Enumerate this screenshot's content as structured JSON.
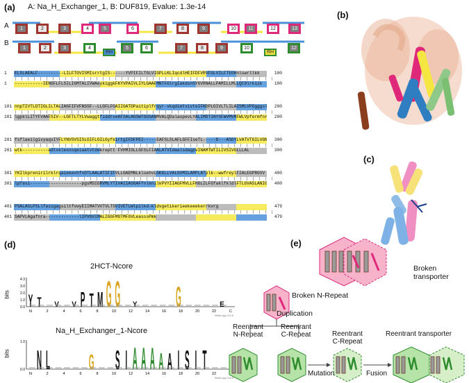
{
  "panel_labels": {
    "a": "(a)",
    "b": "(b)",
    "c": "(c)",
    "d": "(d)",
    "e": "(e)"
  },
  "panel_a": {
    "header": "A: Na_H_Exchanger_1, B: DUF819, Evalue: 1.3e-14",
    "track_a_label": "A",
    "track_b_label": "B",
    "track_a_boxes": [
      {
        "n": "1",
        "fill": "#808080",
        "border": "#a0342e"
      },
      {
        "n": "2",
        "fill": "#e8e8e8",
        "border": "#a0342e"
      },
      {
        "n": "3",
        "fill": "#808080",
        "border": "#a0342e"
      },
      {
        "n": "4",
        "fill": "#ffffff",
        "border": "#e0287a"
      },
      {
        "n": "5",
        "fill": "#808080",
        "border": "#e0287a"
      },
      {
        "n": "6",
        "fill": "#ffffff",
        "border": "#e0287a"
      },
      {
        "n": "7",
        "fill": "#808080",
        "border": "#a0342e"
      },
      {
        "n": "8",
        "fill": "#e8e8e8",
        "border": "#a0342e"
      },
      {
        "n": "9",
        "fill": "#808080",
        "border": "#a0342e"
      },
      {
        "n": "10",
        "fill": "#ffffff",
        "border": "#e0287a"
      },
      {
        "n": "11",
        "fill": "#808080",
        "border": "#e0287a"
      },
      {
        "n": "12",
        "fill": "#ffffff",
        "border": "#e0287a"
      },
      {
        "n": "13",
        "fill": "#808080",
        "border": "#e0287a"
      }
    ],
    "track_b_boxes": [
      {
        "n": "1",
        "fill": "#808080",
        "border": "#a0342e"
      },
      {
        "n": "2",
        "fill": "#e8e8e8",
        "border": "#a0342e"
      },
      {
        "n": "3",
        "fill": "#808080",
        "border": "#a0342e"
      },
      {
        "n": "4",
        "fill": "#ffffff",
        "border": "#2e8b2e"
      },
      {
        "n": "RH",
        "fill": "#4a90d9",
        "border": "#2e8b2e"
      },
      {
        "n": "5",
        "fill": "#808080",
        "border": "#2e8b2e"
      },
      {
        "n": "6",
        "fill": "#ffffff",
        "border": "#2e8b2e"
      },
      {
        "n": "7",
        "fill": "#808080",
        "border": "#a0342e"
      },
      {
        "n": "8",
        "fill": "#e8e8e8",
        "border": "#a0342e"
      },
      {
        "n": "9",
        "fill": "#808080",
        "border": "#a0342e"
      },
      {
        "n": "10",
        "fill": "#ffffff",
        "border": "#2e8b2e"
      },
      {
        "n": "RH",
        "fill": "#f5e642",
        "border": "#2e8b2e"
      },
      {
        "n": "12",
        "fill": "#808080",
        "border": "#2e8b2e"
      }
    ],
    "alignment_blocks": [
      {
        "start_a": "1",
        "end_a": "100",
        "start_b": "1",
        "end_b": "100",
        "seq_a": "ELSLAEALF----------LILFTGVISMIsrrtgIS------YVPIFILTGLVIGPLLKLIqcdlHEIFDFVRVFGLVILFTEGHnlswrllkk",
        "seq_b": "-----------IENGFLFLSILIGMTALIVWAeykiggkFKYVPAIVLIYLGAAFMNTFGlrgIakdsnSYGVRNALLPAMILLMLLQCDlrkiik"
      },
      {
        "start_a": "101",
        "end_a": "200",
        "start_b": "101",
        "end_b": "200",
        "seq_a": "nnpTIVTLDTIGLILTALIAGFIFVFNSSF--LLGFLFGAIIGATDPaitiplfrqyr-vkqdietvivteIFNDPLGIVLTLILAISMLVPGgggsl",
        "seq_b": "lgpklLITYFVAAFSIV--LGFTLTYLVwaggtfiddtveAFSALAGSWTGGSANMVALQDalaupevLYALIMDTINYSFWVMVMFWLVpfermfnr"
      },
      {
        "start_a": "201",
        "end_a": "300",
        "start_b": "201",
        "end_b": "300",
        "seq_a": "fsflaeilgivyaqvIYFLYNVSVSISLGIFLGILGyfkirtgIFDFPEI-----EAFSLSLAFLGFFIseTL-----D---ASGYLVATVTGILVGN",
        "seq_b": "wtk----------adtsklesnsqeiaatvtdekreptt FVHMIGLLGFSLFIAALATVIdaalsdagpvINAMTWTILIVSIVGLLLAL"
      },
      {
        "start_a": "301",
        "end_a": "400",
        "start_b": "301",
        "end_b": "400",
        "seq_a": "YKIlkprenirilrklrqaiekevhfnDTLAALATIFIFVLLGAEMNLklsehvLGKGLLVALGVMILARPLATplk--wwfreylFIALEGPRGVV",
        "seq_b": "lpfasi--------------------pgsMDIGRVMLYTIVAIIASGAFfnlknilkPVYIIAGFMVLLFHGLILFGfaklfkldlFTLGVASLANIGGMV"
      },
      {
        "start_a": "401",
        "end_a": "479",
        "start_b": "401",
        "end_b": "479",
        "seq_a": "PSALASLPSLlfasigagsiltfvwyEIIMATVVTVLTSVIVETLWlpilkd-kldvgetikerieekeeekerrkvrg",
        "seq_b": "SAPVLAgafnra-------------lIPVGVIMALIGGFMGTMFGVLeasssPmk"
      }
    ]
  },
  "panel_d": {
    "logo1_title": "2HCT-Ncore",
    "logo2_title": "Na_H_Exchanger_1-Ncore",
    "y_axis_label": "bits",
    "logo1_yticks": [
      "4.3",
      "3.0",
      "2.0",
      "1.0",
      "0.0"
    ],
    "logo2_yticks": [
      "1.0",
      "0.0"
    ],
    "x_ticks": [
      "N",
      "2",
      "4",
      "6",
      "8",
      "10",
      "12",
      "14",
      "16",
      "18",
      "20",
      "22",
      "C"
    ],
    "watermark": "WebLogo 3.6.0",
    "logo1_letters": [
      {
        "pos": 1,
        "ch": "Y",
        "h": 0.45,
        "color": "#111"
      },
      {
        "pos": 2,
        "ch": "T",
        "h": 0.35,
        "color": "#111"
      },
      {
        "pos": 4,
        "ch": "V",
        "h": 0.2,
        "color": "#111"
      },
      {
        "pos": 6,
        "ch": "V",
        "h": 0.2,
        "color": "#111"
      },
      {
        "pos": 7,
        "ch": "P",
        "h": 0.55,
        "color": "#111"
      },
      {
        "pos": 8,
        "ch": "T",
        "h": 0.5,
        "color": "#111"
      },
      {
        "pos": 9,
        "ch": "M",
        "h": 0.55,
        "color": "#111"
      },
      {
        "pos": 10,
        "ch": "G",
        "h": 0.95,
        "color": "#d9a520"
      },
      {
        "pos": 11,
        "ch": "G",
        "h": 0.95,
        "color": "#d9a520"
      },
      {
        "pos": 13,
        "ch": "Y",
        "h": 0.2,
        "color": "#111"
      },
      {
        "pos": 18,
        "ch": "G",
        "h": 0.75,
        "color": "#d9a520"
      },
      {
        "pos": 23,
        "ch": "E",
        "h": 0.2,
        "color": "#111"
      }
    ],
    "logo2_letters": [
      {
        "pos": 2,
        "ch": "N",
        "h": 0.7,
        "color": "#111"
      },
      {
        "pos": 3,
        "ch": "L",
        "h": 0.7,
        "color": "#111"
      },
      {
        "pos": 8,
        "ch": "G",
        "h": 0.55,
        "color": "#d9a520"
      },
      {
        "pos": 11,
        "ch": "S",
        "h": 0.7,
        "color": "#111"
      },
      {
        "pos": 12,
        "ch": "I",
        "h": 0.7,
        "color": "#111"
      },
      {
        "pos": 13,
        "ch": "A",
        "h": 0.8,
        "color": "#2e8b2e"
      },
      {
        "pos": 14,
        "ch": "A",
        "h": 0.8,
        "color": "#2e8b2e"
      },
      {
        "pos": 15,
        "ch": "A",
        "h": 0.8,
        "color": "#2e8b2e"
      },
      {
        "pos": 16,
        "ch": "A",
        "h": 0.6,
        "color": "#2e8b2e"
      },
      {
        "pos": 17,
        "ch": "A",
        "h": 0.6,
        "color": "#111"
      },
      {
        "pos": 18,
        "ch": "I",
        "h": 0.7,
        "color": "#111"
      },
      {
        "pos": 19,
        "ch": "S",
        "h": 0.7,
        "color": "#111"
      },
      {
        "pos": 20,
        "ch": "I",
        "h": 0.7,
        "color": "#111"
      },
      {
        "pos": 21,
        "ch": "T",
        "h": 0.7,
        "color": "#111"
      }
    ]
  },
  "panel_e": {
    "broken_transporter": "Broken  transporter",
    "broken_n_repeat": "Broken N-Repeat",
    "duplication": "Duplication",
    "reentrant_n_repeat": "Reentrant\nN-Repeat",
    "reentrant_c_repeat_1": "Reentrant\nC-Repeat",
    "reentrant_c_repeat_2": "Reentrant\nC-Repeat",
    "reentrant_transporter": "Reentrant transporter",
    "mutation": "Mutation",
    "fusion": "Fusion"
  },
  "colors": {
    "pink": "#e0287a",
    "pink_fill": "#f6b3c9",
    "green": "#2e8b2e",
    "green_fill": "#b6e4a8",
    "yellow": "#f5e642",
    "blue": "#4a90d9",
    "brown": "#a0342e",
    "gray": "#808080"
  }
}
